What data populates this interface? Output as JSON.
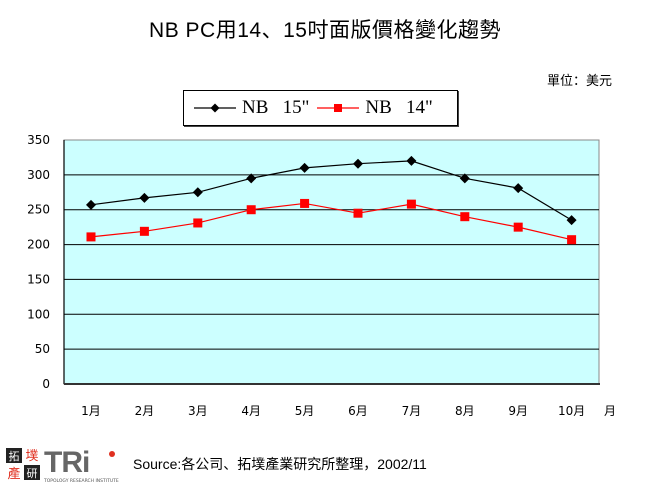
{
  "title": "NB PC用14、15吋面版價格變化趨勢",
  "unit_label": "單位：美元",
  "legend": [
    {
      "label": "NB   15\"",
      "color": "#000000",
      "marker": "diamond"
    },
    {
      "label": "NB   14\"",
      "color": "#ff0000",
      "marker": "square"
    }
  ],
  "footer": {
    "source": "Source:各公司、拓墣產業研究所整理，2002/11",
    "logo_text": "TRi",
    "logo_cn_1": "拓墣",
    "logo_cn_2": "產研",
    "logo_sub": "TOPOLOGY RESEARCH INSTITUTE"
  },
  "colors": {
    "plot_bg": "#ccffff",
    "gridline": "#000000",
    "series_15": "#000000",
    "series_14": "#ff0000"
  },
  "chart_data": {
    "type": "line",
    "title": "NB PC用14、15吋面版價格變化趨勢",
    "xlabel": "月",
    "ylabel": "單位：美元",
    "categories": [
      "1月",
      "2月",
      "3月",
      "4月",
      "5月",
      "6月",
      "7月",
      "8月",
      "9月",
      "10月"
    ],
    "series": [
      {
        "name": "NB 15\"",
        "values": [
          257,
          267,
          275,
          295,
          310,
          316,
          320,
          295,
          281,
          235
        ]
      },
      {
        "name": "NB 14\"",
        "values": [
          211,
          219,
          231,
          250,
          259,
          245,
          258,
          240,
          225,
          207
        ]
      }
    ],
    "yticks": [
      0,
      50,
      100,
      150,
      200,
      250,
      300,
      350
    ],
    "ylim": [
      0,
      350
    ],
    "grid": true,
    "legend_position": "top"
  }
}
